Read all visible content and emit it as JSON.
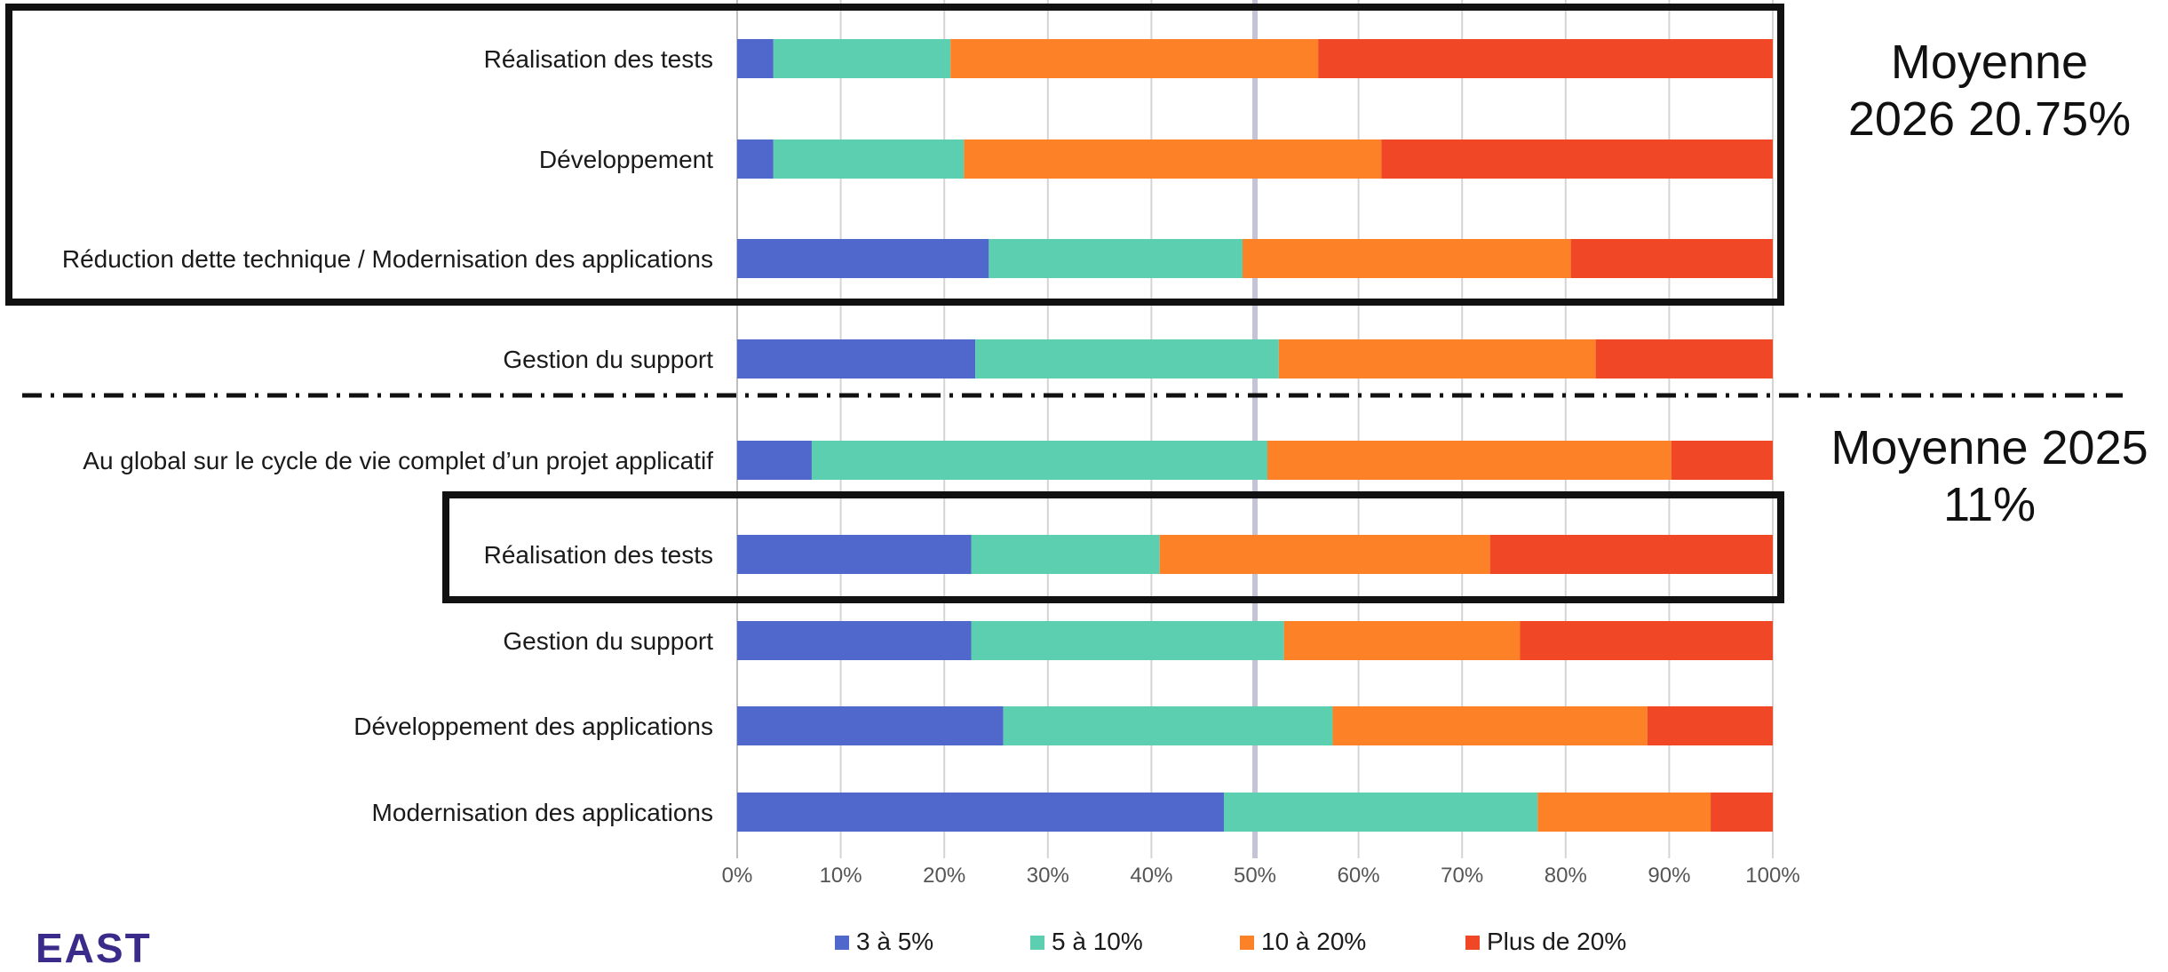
{
  "chart_data": {
    "type": "bar",
    "orientation": "horizontal",
    "stacked": "percent",
    "categories": [
      "Réalisation des tests",
      "Développement",
      "Réduction dette technique / Modernisation des applications",
      "Gestion du support",
      "Au global sur le cycle de vie complet d’un projet applicatif",
      "Réalisation des tests",
      "Gestion du support",
      "Développement des applications",
      "Modernisation des applications"
    ],
    "series": [
      {
        "name": "3 à 5%",
        "color": "#5068cc",
        "values": [
          3.5,
          3.5,
          24.3,
          23.0,
          7.2,
          22.6,
          22.6,
          25.7,
          47.0
        ]
      },
      {
        "name": "5 à 10%",
        "color": "#5ccfb0",
        "values": [
          17.1,
          18.4,
          24.5,
          29.3,
          44.0,
          18.2,
          30.2,
          31.8,
          30.3
        ]
      },
      {
        "name": "10 à 20%",
        "color": "#fd8126",
        "values": [
          35.5,
          40.3,
          31.7,
          30.6,
          39.0,
          31.9,
          22.8,
          30.4,
          16.7
        ]
      },
      {
        "name": "Plus de 20%",
        "color": "#f04727",
        "values": [
          43.9,
          37.8,
          19.5,
          17.1,
          9.8,
          27.3,
          24.4,
          12.1,
          6.0
        ]
      }
    ],
    "xticks": [
      "0%",
      "10%",
      "20%",
      "30%",
      "40%",
      "50%",
      "60%",
      "70%",
      "80%",
      "90%",
      "100%"
    ],
    "xlim": [
      0,
      100
    ],
    "reference_line": 50,
    "grid": true,
    "legend_position": "bottom"
  },
  "annotations": {
    "moyenne_2026": [
      "Moyenne",
      "2026 20.75%"
    ],
    "moyenne_2025": [
      "Moyenne 2025",
      "11%"
    ]
  },
  "logo_text": "EAST"
}
